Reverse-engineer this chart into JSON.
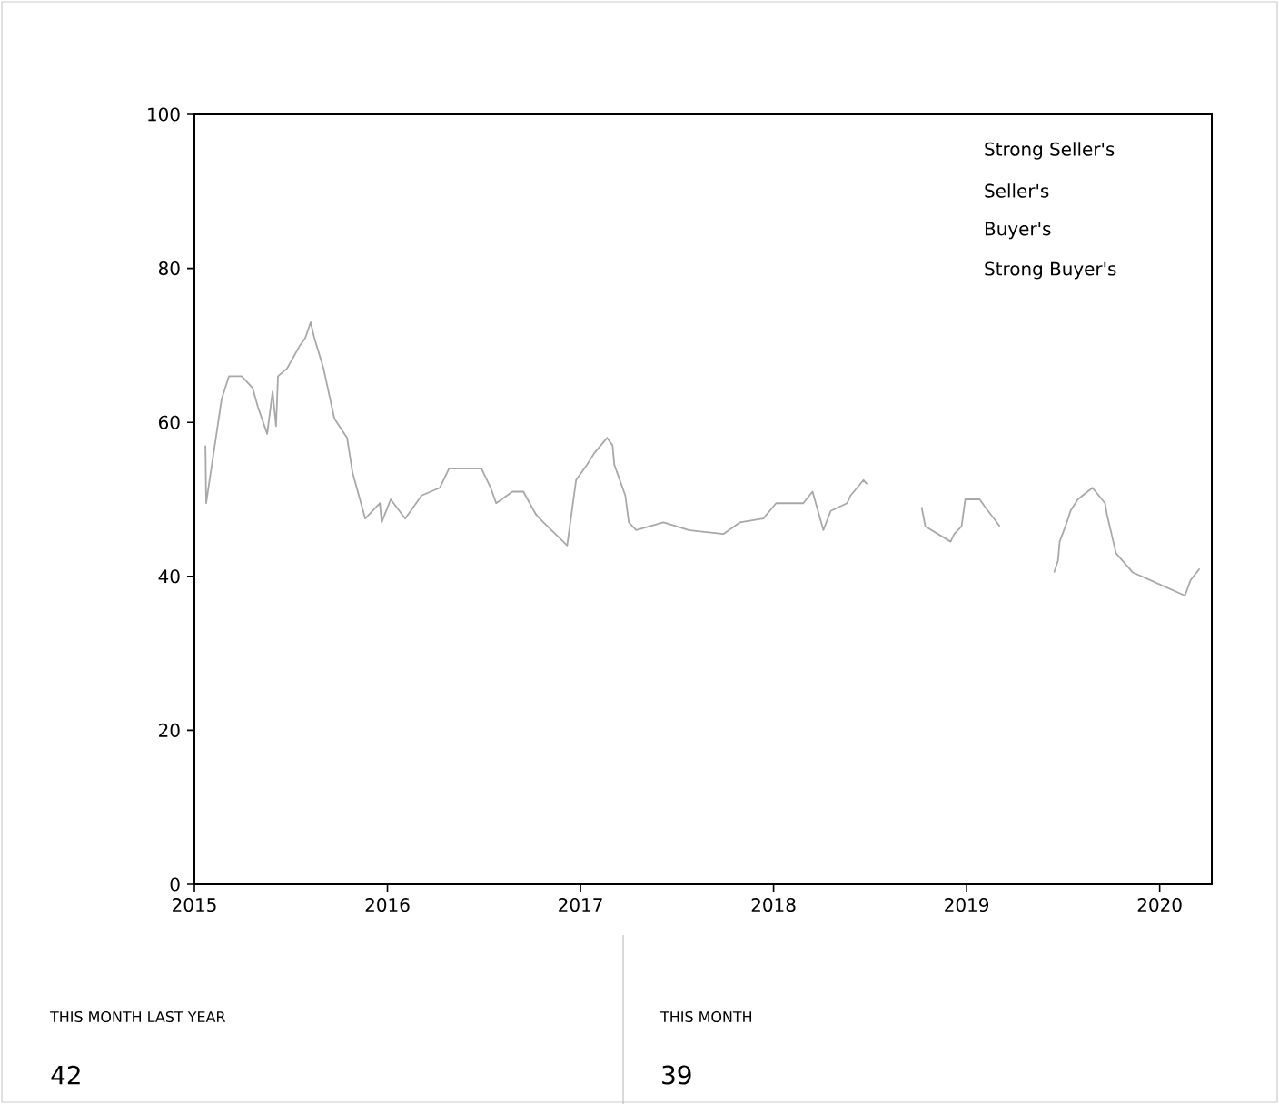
{
  "chart_data": {
    "type": "line",
    "xlim": [
      2015,
      2020.27
    ],
    "xticks": [
      2015,
      2016,
      2017,
      2018,
      2019,
      2020
    ],
    "ylim": [
      0,
      100
    ],
    "yticks": [
      0,
      20,
      40,
      60,
      80,
      100
    ],
    "grid": false,
    "marker": "none",
    "line_style": "solid",
    "annotations": [
      "Strong Seller's",
      "Seller's",
      "Buyer's",
      "Strong Buyer's",
      "THIS MONTH LAST YEAR",
      "42",
      "THIS MONTH",
      "39"
    ],
    "series": [
      {
        "color": "#a8a8a8",
        "x": [
          2015.057,
          2015.061,
          2015.141,
          2015.179,
          2015.245,
          2015.301,
          2015.329,
          2015.377,
          2015.405,
          2015.423,
          2015.433,
          2015.48,
          2015.547,
          2015.575,
          2015.602,
          2015.621,
          2015.669,
          2015.725,
          2015.791,
          2015.819,
          2015.885,
          2015.961,
          2015.97,
          2016.017,
          2016.092,
          2016.177,
          2016.271,
          2016.319,
          2016.487,
          2016.535,
          2016.563,
          2016.648,
          2016.704,
          2016.77,
          2016.808,
          2016.931,
          2016.977,
          2017.034,
          2017.071,
          2017.138,
          2017.166,
          2017.175,
          2017.232,
          2017.25,
          2017.288,
          2017.43,
          2017.561,
          2017.74,
          2017.825,
          2017.947,
          2018.013,
          2018.051,
          2018.154,
          2018.202,
          2018.258,
          2018.296,
          2018.381,
          2018.399,
          2018.466,
          2018.484,
          2018.637,
          2018.767,
          2018.786,
          2018.917,
          2018.936,
          2018.974,
          2018.993,
          2019.068,
          2019.096,
          2019.172,
          2019.344,
          2019.453,
          2019.473,
          2019.482,
          2019.519,
          2019.538,
          2019.576,
          2019.652,
          2019.717,
          2019.727,
          2019.746,
          2019.774,
          2019.861,
          2020.131,
          2020.16,
          2020.207
        ],
        "values": [
          57,
          49.5,
          63,
          66,
          66,
          64.5,
          62,
          58.5,
          64,
          59.5,
          66,
          67,
          70,
          71,
          73,
          71,
          67,
          60.5,
          58,
          53.5,
          47.5,
          49.5,
          47,
          50,
          47.5,
          50.5,
          51.5,
          54,
          54,
          51.5,
          49.5,
          51,
          51,
          48,
          47,
          44,
          52.5,
          54.5,
          56,
          58,
          57,
          54.5,
          50.5,
          47,
          46,
          47,
          46,
          45.5,
          47,
          47.5,
          49.5,
          49.5,
          49.5,
          51,
          46,
          48.5,
          49.5,
          50.5,
          52.5,
          52,
          null,
          49,
          46.5,
          44.5,
          45.5,
          46.5,
          50,
          50,
          49,
          46.5,
          null,
          40.5,
          42,
          44.5,
          47,
          48.5,
          50,
          51.5,
          49.5,
          48,
          46,
          43,
          40.5,
          37.5,
          39.5,
          41
        ]
      }
    ]
  }
}
